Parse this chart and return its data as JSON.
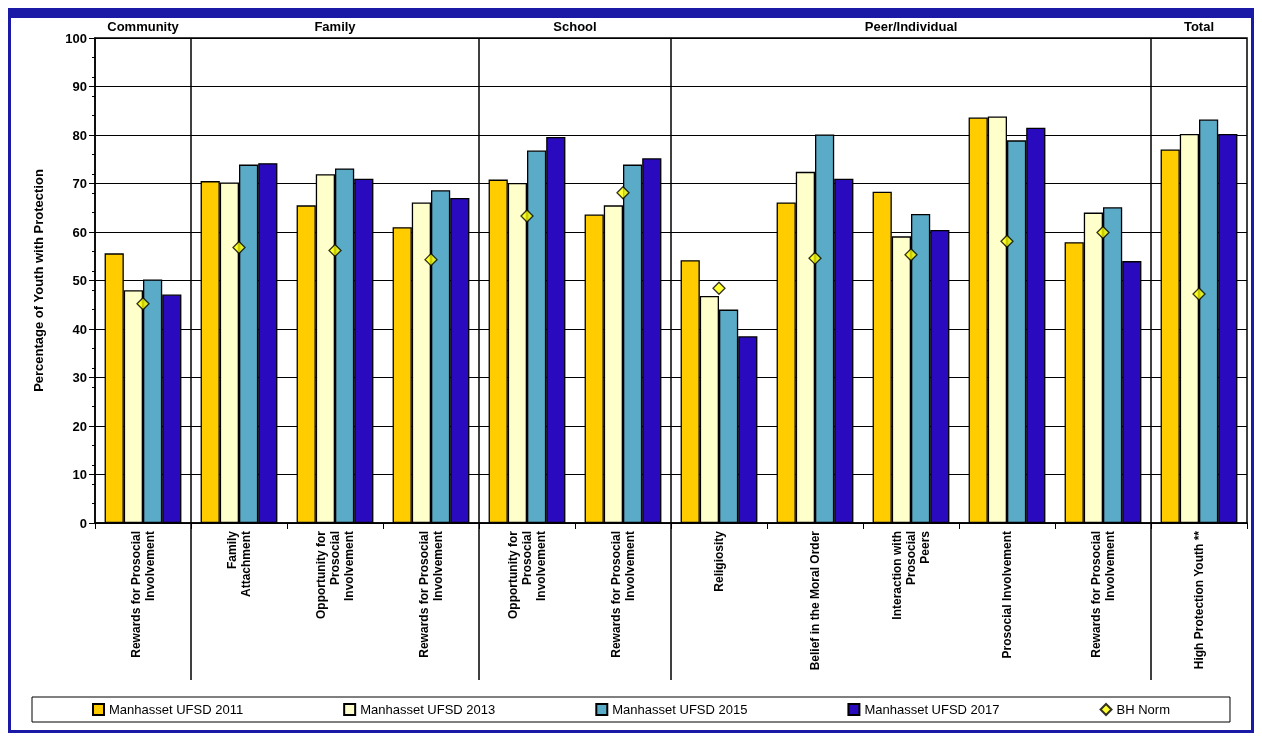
{
  "chart_data": {
    "type": "bar",
    "ylabel": "Percentage of Youth with Protection",
    "annotations": [
      "Community",
      "Family",
      "School",
      "Peer/Individual",
      "Total"
    ],
    "categories": [
      "Rewards for Prosocial\nInvolvement",
      "Family\nAttachment",
      "Opportunity for\nProsocial\nInvolvement",
      "Rewards for Prosocial\nInvolvement",
      "Opportunity for\nProsocial\nInvolvement",
      "Rewards for Prosocial\nInvolvement",
      "Religiosity",
      "Belief in the Moral Order",
      "Interaction with\nProsocial\nPeers",
      "Prosocial Involvement",
      "Rewards for Prosocial\nInvolvement",
      "High Protection Youth **"
    ],
    "series": [
      {
        "name": "Manhasset UFSD 2011",
        "color": "#ffcc00",
        "values": [
          55.6,
          70.5,
          65.5,
          61.0,
          70.8,
          63.6,
          54.2,
          66.1,
          68.3,
          83.6,
          57.9,
          77.0
        ]
      },
      {
        "name": "Manhasset UFSD 2013",
        "color": "#ffffcc",
        "values": [
          48.0,
          70.2,
          71.9,
          66.1,
          70.1,
          65.5,
          46.8,
          72.4,
          59.1,
          83.8,
          64.0,
          80.2
        ]
      },
      {
        "name": "Manhasset UFSD 2015",
        "color": "#5aabc8",
        "values": [
          50.2,
          73.9,
          73.1,
          68.6,
          76.8,
          73.9,
          44.0,
          80.1,
          63.7,
          78.9,
          65.1,
          83.2
        ]
      },
      {
        "name": "Manhasset UFSD 2017",
        "color": "#2a0abf",
        "values": [
          47.1,
          74.2,
          71.0,
          67.0,
          79.6,
          75.2,
          38.5,
          71.0,
          60.4,
          81.5,
          54.0,
          80.2
        ]
      },
      {
        "name": "BH Norm",
        "type": "scatter",
        "marker": "diamond",
        "color": "#ffff00",
        "values": [
          45.2,
          56.8,
          56.2,
          54.3,
          63.3,
          68.1,
          48.4,
          54.6,
          55.3,
          58.1,
          59.9,
          47.2
        ]
      }
    ],
    "ylim": [
      0,
      100
    ],
    "yticks": [
      0,
      10,
      20,
      30,
      40,
      50,
      60,
      70,
      80,
      90,
      100
    ],
    "grid": "y",
    "legend": "bottom"
  }
}
